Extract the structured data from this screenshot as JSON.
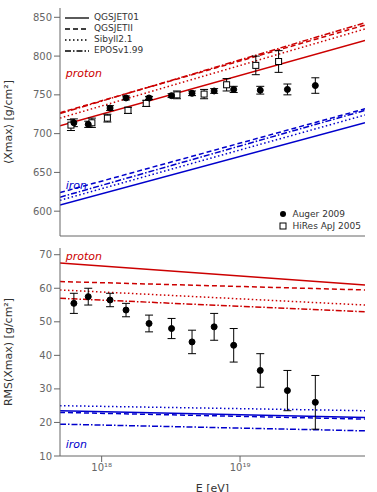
{
  "chart_data": [
    {
      "type": "line",
      "y_label": "⟨Xmax⟩ [g/cm²]",
      "log": "x",
      "xlim": [
        5e+17,
        8e+19
      ],
      "xticks": [
        {
          "value": 1e+18,
          "label": "10¹⁸"
        },
        {
          "value": 1e+19,
          "label": "10¹⁹"
        }
      ],
      "ylim": [
        568,
        862
      ],
      "yticks": [
        600,
        650,
        700,
        750,
        800,
        850
      ],
      "grid": false,
      "legend": "upper left",
      "tick_labels": "y",
      "series": [
        {
          "name": "QGSJET01",
          "line_style": "solid",
          "color": "#cc0000",
          "x": [
            5e+17,
            8e+19
          ],
          "values": [
            710,
            820
          ]
        },
        {
          "name": "QGSJETII",
          "line_style": "dashed",
          "color": "#cc0000",
          "x": [
            5e+17,
            8e+19
          ],
          "values": [
            727,
            840
          ]
        },
        {
          "name": "Sibyll2.1",
          "line_style": "dotted",
          "color": "#cc0000",
          "x": [
            5e+17,
            8e+19
          ],
          "values": [
            720,
            835
          ]
        },
        {
          "name": "EPOSv1.99",
          "line_style": "dashdot",
          "color": "#cc0000",
          "x": [
            5e+17,
            8e+19
          ],
          "values": [
            726,
            843
          ]
        },
        {
          "name": "QGSJET01",
          "line_style": "solid",
          "color": "#0000cc",
          "x": [
            5e+17,
            8e+19
          ],
          "values": [
            608,
            714
          ]
        },
        {
          "name": "QGSJETII",
          "line_style": "dashed",
          "color": "#0000cc",
          "x": [
            5e+17,
            8e+19
          ],
          "values": [
            624,
            732
          ]
        },
        {
          "name": "Sibyll2.1",
          "line_style": "dotted",
          "color": "#0000cc",
          "x": [
            5e+17,
            8e+19
          ],
          "values": [
            614,
            724
          ]
        },
        {
          "name": "EPOSv1.99",
          "line_style": "dashdot",
          "color": "#0000cc",
          "x": [
            5e+17,
            8e+19
          ],
          "values": [
            618,
            730
          ]
        },
        {
          "name": "Auger 2009",
          "type": "scatter",
          "marker": "circle",
          "color": "#000000",
          "x": [
            6.3e+17,
            8e+17,
            1.15e+18,
            1.5e+18,
            2.2e+18,
            3.2e+18,
            4.5e+18,
            6.5e+18,
            9e+18,
            1.4e+19,
            2.2e+19,
            3.5e+19
          ],
          "values": [
            714,
            712,
            733,
            746,
            746,
            749,
            752,
            755,
            757,
            756,
            757,
            762
          ],
          "error_low": [
            5,
            4,
            3,
            2.5,
            2,
            2.5,
            3,
            3,
            4,
            5,
            7,
            10
          ],
          "error_high": [
            5,
            4,
            3,
            2.5,
            2,
            2.5,
            3,
            3,
            4,
            5,
            7,
            10
          ]
        },
        {
          "name": "HiRes ApJ 2005",
          "type": "scatter",
          "marker": "square",
          "color": "#000000",
          "x": [
            6e+17,
            8.5e+17,
            1.1e+18,
            1.55e+18,
            2.1e+18,
            3.5e+18,
            5.5e+18,
            8e+18,
            1.3e+19,
            1.9e+19
          ],
          "values": [
            711,
            714,
            720,
            730,
            739,
            750,
            751,
            763,
            788,
            793
          ],
          "error": [
            7,
            6,
            5,
            4,
            4,
            5,
            6,
            8,
            12,
            14
          ]
        }
      ],
      "annotations": [
        {
          "text": "proton",
          "x": 5.5e+17,
          "y": 773,
          "color": "#cc0000"
        },
        {
          "text": "iron",
          "x": 5.5e+17,
          "y": 628,
          "color": "#0000cc"
        }
      ]
    },
    {
      "type": "line",
      "x_label": "E [eV]",
      "y_label": "RMS(Xmax) [g/cm²]",
      "log": "x",
      "xlim": [
        5e+17,
        8e+19
      ],
      "xticks": [
        {
          "value": 1e+18,
          "label": "10¹⁸"
        },
        {
          "value": 1e+19,
          "label": "10¹⁹"
        }
      ],
      "ylim": [
        10,
        72
      ],
      "yticks": [
        10,
        20,
        30,
        40,
        50,
        60,
        70
      ],
      "grid": false,
      "series": [
        {
          "name": "QGSJET01",
          "line_style": "solid",
          "color": "#cc0000",
          "x": [
            5e+17,
            8e+19
          ],
          "values": [
            67.5,
            61.0
          ]
        },
        {
          "name": "QGSJETII",
          "line_style": "dashed",
          "color": "#cc0000",
          "x": [
            5e+17,
            8e+19
          ],
          "values": [
            62.0,
            59.5
          ]
        },
        {
          "name": "Sibyll2.1",
          "line_style": "dotted",
          "color": "#cc0000",
          "x": [
            5e+17,
            8e+19
          ],
          "values": [
            59.5,
            55.0
          ]
        },
        {
          "name": "EPOSv1.99",
          "line_style": "dashdot",
          "color": "#cc0000",
          "x": [
            5e+17,
            8e+19
          ],
          "values": [
            57.0,
            53.0
          ]
        },
        {
          "name": "QGSJET01",
          "line_style": "solid",
          "color": "#0000cc",
          "x": [
            5e+17,
            8e+19
          ],
          "values": [
            23.5,
            21.5
          ]
        },
        {
          "name": "QGSJETII",
          "line_style": "dashed",
          "color": "#0000cc",
          "x": [
            5e+17,
            8e+19
          ],
          "values": [
            23.0,
            21.0
          ]
        },
        {
          "name": "Sibyll2.1",
          "line_style": "dotted",
          "color": "#0000cc",
          "x": [
            5e+17,
            8e+19
          ],
          "values": [
            25.0,
            23.5
          ]
        },
        {
          "name": "EPOSv1.99",
          "line_style": "dashdot",
          "color": "#0000cc",
          "x": [
            5e+17,
            8e+19
          ],
          "values": [
            19.5,
            17.5
          ]
        },
        {
          "name": "Auger 2009",
          "type": "scatter",
          "marker": "circle",
          "color": "#000000",
          "x": [
            6.3e+17,
            8e+17,
            1.15e+18,
            1.5e+18,
            2.2e+18,
            3.2e+18,
            4.5e+18,
            6.5e+18,
            9e+18,
            1.4e+19,
            2.2e+19,
            3.5e+19
          ],
          "values": [
            55.5,
            57.5,
            56.5,
            53.5,
            49.5,
            48.0,
            44.0,
            48.5,
            43.0,
            35.5,
            29.5,
            26.0
          ],
          "error_low": [
            3,
            2.5,
            2,
            2,
            2.5,
            3,
            3.5,
            4,
            5,
            5,
            6,
            8
          ],
          "error_high": [
            3,
            2.5,
            2,
            2,
            2.5,
            3,
            3.5,
            4,
            5,
            5,
            6,
            8
          ]
        }
      ],
      "annotations": [
        {
          "text": "proton",
          "x": 5.5e+17,
          "y": 68.5,
          "color": "#cc0000"
        },
        {
          "text": "iron",
          "x": 5.5e+17,
          "y": 12.5,
          "color": "#0000cc"
        }
      ]
    }
  ]
}
